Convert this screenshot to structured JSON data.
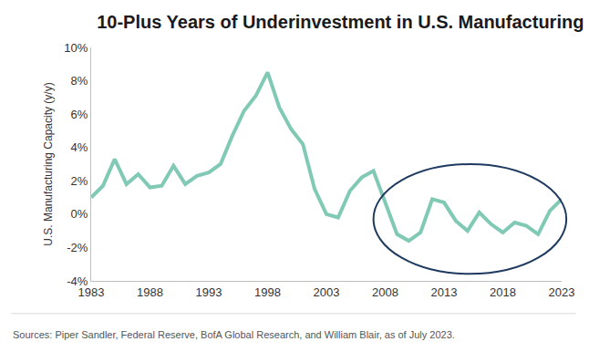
{
  "chart_data": {
    "type": "line",
    "title": "10-Plus Years of Underinvestment in U.S. Manufacturing",
    "y_label": "U.S. Manufacturing Capacity (y/y)",
    "source": "Sources: Piper Sandler, Federal Reserve, BofA Global Research, and William Blair, as of July 2023.",
    "x": [
      1983,
      1984,
      1985,
      1986,
      1987,
      1988,
      1989,
      1990,
      1991,
      1992,
      1993,
      1994,
      1995,
      1996,
      1997,
      1998,
      1999,
      2000,
      2001,
      2002,
      2003,
      2004,
      2005,
      2006,
      2007,
      2008,
      2009,
      2010,
      2011,
      2012,
      2013,
      2014,
      2015,
      2016,
      2017,
      2018,
      2019,
      2020,
      2021,
      2022,
      2023
    ],
    "values": [
      1.0,
      1.7,
      3.3,
      1.8,
      2.4,
      1.6,
      1.7,
      2.9,
      1.8,
      2.3,
      2.5,
      3.0,
      4.7,
      6.2,
      7.1,
      8.5,
      6.4,
      5.1,
      4.2,
      1.5,
      0.0,
      -0.2,
      1.4,
      2.2,
      2.6,
      0.7,
      -1.2,
      -1.6,
      -1.1,
      0.9,
      0.7,
      -0.4,
      -1.0,
      0.1,
      -0.6,
      -1.1,
      -0.5,
      -0.7,
      -1.2,
      0.2,
      0.9
    ],
    "color": "#80c9b4",
    "xlim": [
      1983,
      2023
    ],
    "xticks": [
      1983,
      1988,
      1993,
      1998,
      2003,
      2008,
      2013,
      2018,
      2023
    ],
    "ylim": [
      -4,
      10
    ],
    "yticks": [
      {
        "value": -4,
        "label": "-4%"
      },
      {
        "value": -2,
        "label": "-2%"
      },
      {
        "value": 0,
        "label": "0%"
      },
      {
        "value": 2,
        "label": "2%"
      },
      {
        "value": 4,
        "label": "4%"
      },
      {
        "value": 6,
        "label": "6%"
      },
      {
        "value": 8,
        "label": "8%"
      },
      {
        "value": 10,
        "label": "10%"
      }
    ],
    "grid": false
  }
}
